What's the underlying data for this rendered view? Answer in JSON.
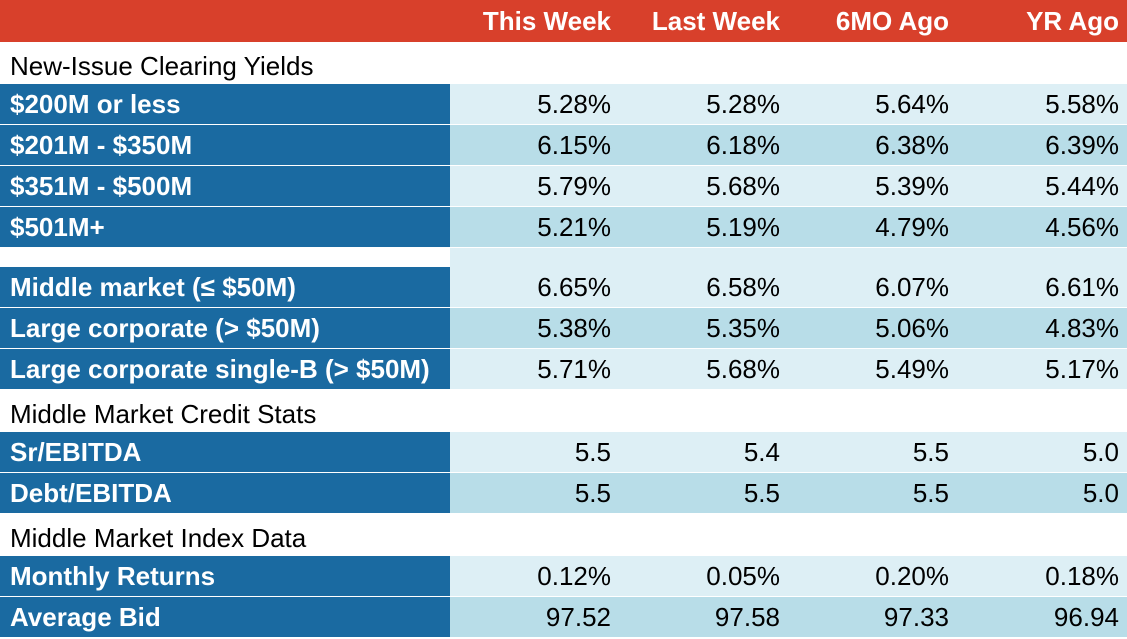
{
  "header": {
    "cols": [
      "This Week",
      "Last Week",
      "6MO Ago",
      "YR Ago"
    ]
  },
  "sections": [
    {
      "title": "New-Issue Clearing Yields",
      "rows": [
        {
          "label": "$200M or less",
          "values": [
            "5.28%",
            "5.28%",
            "5.64%",
            "5.58%"
          ]
        },
        {
          "label": "$201M - $350M",
          "values": [
            "6.15%",
            "6.18%",
            "6.38%",
            "6.39%"
          ]
        },
        {
          "label": "$351M - $500M",
          "values": [
            "5.79%",
            "5.68%",
            "5.39%",
            "5.44%"
          ]
        },
        {
          "label": "$501M+",
          "values": [
            "5.21%",
            "5.19%",
            "4.79%",
            "4.56%"
          ]
        }
      ]
    },
    {
      "title": "",
      "rows": [
        {
          "label": "Middle market (≤ $50M)",
          "values": [
            "6.65%",
            "6.58%",
            "6.07%",
            "6.61%"
          ]
        },
        {
          "label": "Large corporate (> $50M)",
          "values": [
            "5.38%",
            "5.35%",
            "5.06%",
            "4.83%"
          ]
        },
        {
          "label": "Large corporate single-B (> $50M)",
          "values": [
            "5.71%",
            "5.68%",
            "5.49%",
            "5.17%"
          ]
        }
      ]
    },
    {
      "title": "Middle Market Credit Stats",
      "rows": [
        {
          "label": "Sr/EBITDA",
          "values": [
            "5.5",
            "5.4",
            "5.5",
            "5.0"
          ]
        },
        {
          "label": "Debt/EBITDA",
          "values": [
            "5.5",
            "5.5",
            "5.5",
            "5.0"
          ]
        }
      ]
    },
    {
      "title": "Middle Market Index Data",
      "rows": [
        {
          "label": "Monthly Returns",
          "values": [
            "0.12%",
            "0.05%",
            "0.20%",
            "0.18%"
          ]
        },
        {
          "label": "Average Bid",
          "values": [
            "97.52",
            "97.58",
            "97.33",
            "96.94"
          ]
        }
      ]
    }
  ]
}
